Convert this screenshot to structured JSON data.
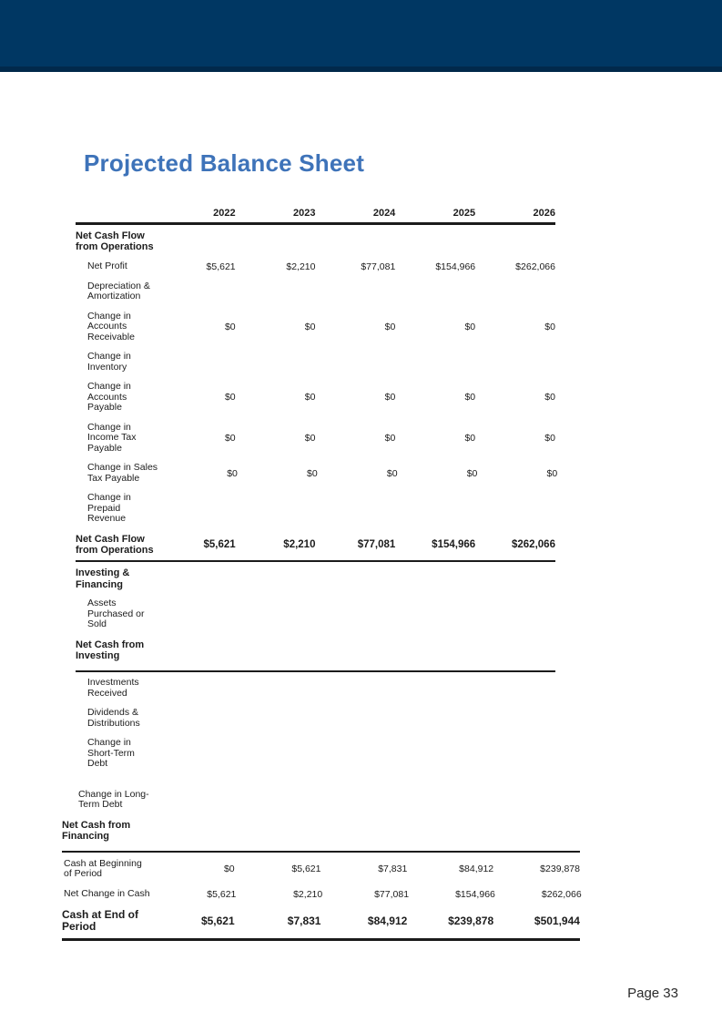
{
  "page": {
    "title": "Projected Balance Sheet",
    "page_number": "Page 33"
  },
  "colors": {
    "header_bar": "#003763",
    "header_bar_edge": "#01294b",
    "title_blue": "#3e73b9",
    "text": "#1c1c1c"
  },
  "table": {
    "years": [
      "2022",
      "2023",
      "2024",
      "2025",
      "2026"
    ],
    "upper_rows": [
      {
        "kind": "section",
        "label": "Net Cash Flow\nfrom Operations",
        "values": null
      },
      {
        "kind": "item",
        "label": "Net Profit",
        "values": [
          "$5,621",
          "$2,210",
          "$77,081",
          "$154,966",
          "$262,066"
        ]
      },
      {
        "kind": "item",
        "label": "Depreciation &\nAmortization",
        "values": null
      },
      {
        "kind": "item",
        "label": "Change in\nAccounts\nReceivable",
        "values": [
          "$0",
          "$0",
          "$0",
          "$0",
          "$0"
        ]
      },
      {
        "kind": "item",
        "label": "Change in\nInventory",
        "values": null
      },
      {
        "kind": "item",
        "label": "Change in\nAccounts\nPayable",
        "values": [
          "$0",
          "$0",
          "$0",
          "$0",
          "$0"
        ]
      },
      {
        "kind": "item",
        "label": "Change in\nIncome Tax\nPayable",
        "values": [
          "$0",
          "$0",
          "$0",
          "$0",
          "$0"
        ]
      },
      {
        "kind": "item",
        "label": "Change in Sales\nTax Payable",
        "values": [
          "$0",
          "$0",
          "$0",
          "$0",
          "$0"
        ]
      },
      {
        "kind": "item",
        "label": "Change in\nPrepaid\nRevenue",
        "values": null
      },
      {
        "kind": "total",
        "label": "Net Cash Flow\nfrom Operations",
        "values": [
          "$5,621",
          "$2,210",
          "$77,081",
          "$154,966",
          "$262,066"
        ],
        "rule_after": "thick"
      },
      {
        "kind": "section",
        "label": "Investing &\nFinancing",
        "values": null
      },
      {
        "kind": "item",
        "label": "Assets\nPurchased or\nSold",
        "values": null
      },
      {
        "kind": "section",
        "label": "Net Cash from\nInvesting",
        "values": null,
        "rule_after": "thick"
      },
      {
        "kind": "item",
        "label": "Investments\nReceived",
        "values": null
      },
      {
        "kind": "item",
        "label": "Dividends &\nDistributions",
        "values": null
      },
      {
        "kind": "item",
        "label": "Change in\nShort-Term\nDebt",
        "values": null,
        "gap_after": true
      },
      {
        "kind": "item2",
        "label": "Change in Long-\nTerm Debt",
        "values": null
      }
    ],
    "lower_rows": [
      {
        "kind": "section",
        "label": "Net Cash from\nFinancing",
        "values": null,
        "rule_after": "thin"
      },
      {
        "kind": "data",
        "label": "Cash at Beginning\nof Period",
        "values": [
          "$0",
          "$5,621",
          "$7,831",
          "$84,912",
          "$239,878"
        ]
      },
      {
        "kind": "data",
        "label": "Net Change in Cash",
        "values": [
          "$5,621",
          "$2,210",
          "$77,081",
          "$154,966",
          "$262,066"
        ]
      },
      {
        "kind": "grand",
        "label": "Cash at End of\nPeriod",
        "values": [
          "$5,621",
          "$7,831",
          "$84,912",
          "$239,878",
          "$501,944"
        ],
        "rule_after": "xthick"
      }
    ]
  }
}
